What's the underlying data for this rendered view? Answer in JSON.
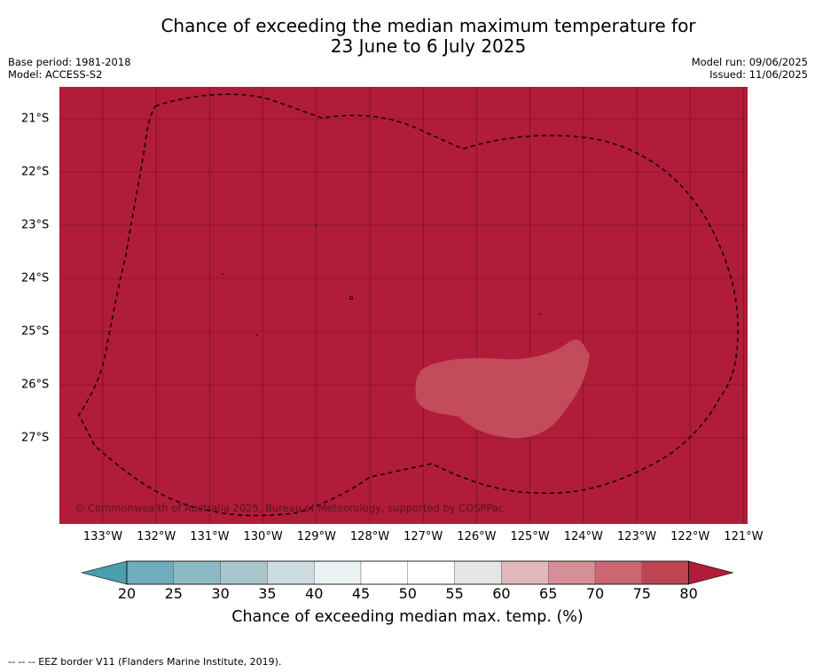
{
  "title": {
    "line1": "Chance of exceeding the median maximum temperature for",
    "line2": "23 June to 6 July 2025"
  },
  "meta": {
    "base_period": "Base period: 1981-2018",
    "model": "Model: ACCESS-S2",
    "model_run": "Model run: 09/06/2025",
    "issued": "Issued: 11/06/2025"
  },
  "map": {
    "fill_color": "#b01c39",
    "patch_color": "#c44b5a",
    "lon_labels": [
      "133°W",
      "132°W",
      "131°W",
      "130°W",
      "129°W",
      "128°W",
      "127°W",
      "126°W",
      "125°W",
      "124°W",
      "123°W",
      "122°W",
      "121°W"
    ],
    "lat_labels": [
      "21°S",
      "22°S",
      "23°S",
      "24°S",
      "25°S",
      "26°S",
      "27°S"
    ],
    "copyright": "© Commonwealth of Australia 2025, Bureau of Meteorology, supported by COSPPac"
  },
  "colorbar": {
    "ticks": [
      "20",
      "25",
      "30",
      "35",
      "40",
      "45",
      "50",
      "55",
      "60",
      "65",
      "70",
      "75",
      "80"
    ],
    "colors": [
      "#4a9eae",
      "#6eadbd",
      "#8bbac5",
      "#a8c6cb",
      "#ccdbdf",
      "#eaf1f3",
      "#ffffff",
      "#ffffff",
      "#e6e6e6",
      "#e2b8bd",
      "#d78f97",
      "#cb6672",
      "#bf4452",
      "#b01c39"
    ],
    "label": "Chance of exceeding median max. temp. (%)"
  },
  "legend_note": "--  --  -- EEZ border V11 (Flanders Marine Institute, 2019)."
}
